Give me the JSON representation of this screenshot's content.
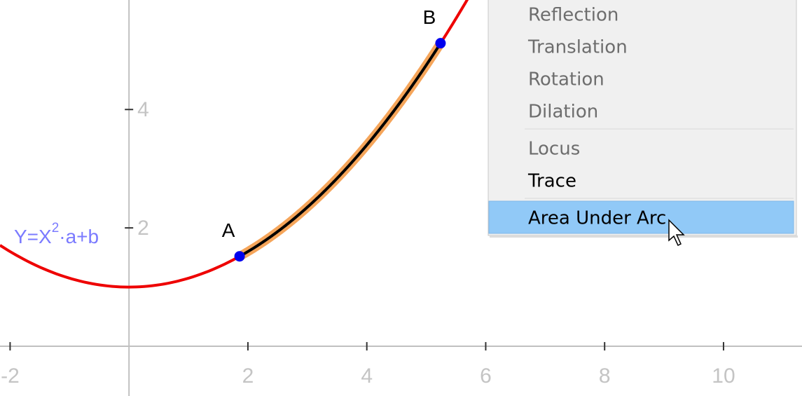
{
  "graph": {
    "xlim": [
      -2.17,
      11.32
    ],
    "ylim": [
      -0.84,
      5.85
    ],
    "xticks": [
      -2,
      2,
      4,
      6,
      8,
      10
    ],
    "yticks": [
      2,
      4
    ],
    "curve": {
      "a": 0.15,
      "b": 1,
      "color": "#ee0000"
    },
    "equation": {
      "base": "Y=X",
      "exponent": "2",
      "rest": "·a+b"
    },
    "arc": {
      "from": 0,
      "to": 1,
      "color": "#000000",
      "highlight": "#f5a55a"
    },
    "points": [
      {
        "label": "A",
        "x": 1.86,
        "y": 1.52
      },
      {
        "label": "B",
        "x": 5.24,
        "y": 5.12
      }
    ]
  },
  "menu": {
    "items": [
      {
        "text": "Reflection",
        "state": "disabled"
      },
      {
        "text": "Translation",
        "state": "disabled"
      },
      {
        "text": "Rotation",
        "state": "disabled"
      },
      {
        "text": "Dilation",
        "state": "disabled"
      },
      {
        "text": "Locus",
        "state": "disabled"
      },
      {
        "text": "Trace",
        "state": "enabled"
      },
      {
        "text": "Area Under Arc",
        "state": "highlighted"
      }
    ]
  }
}
